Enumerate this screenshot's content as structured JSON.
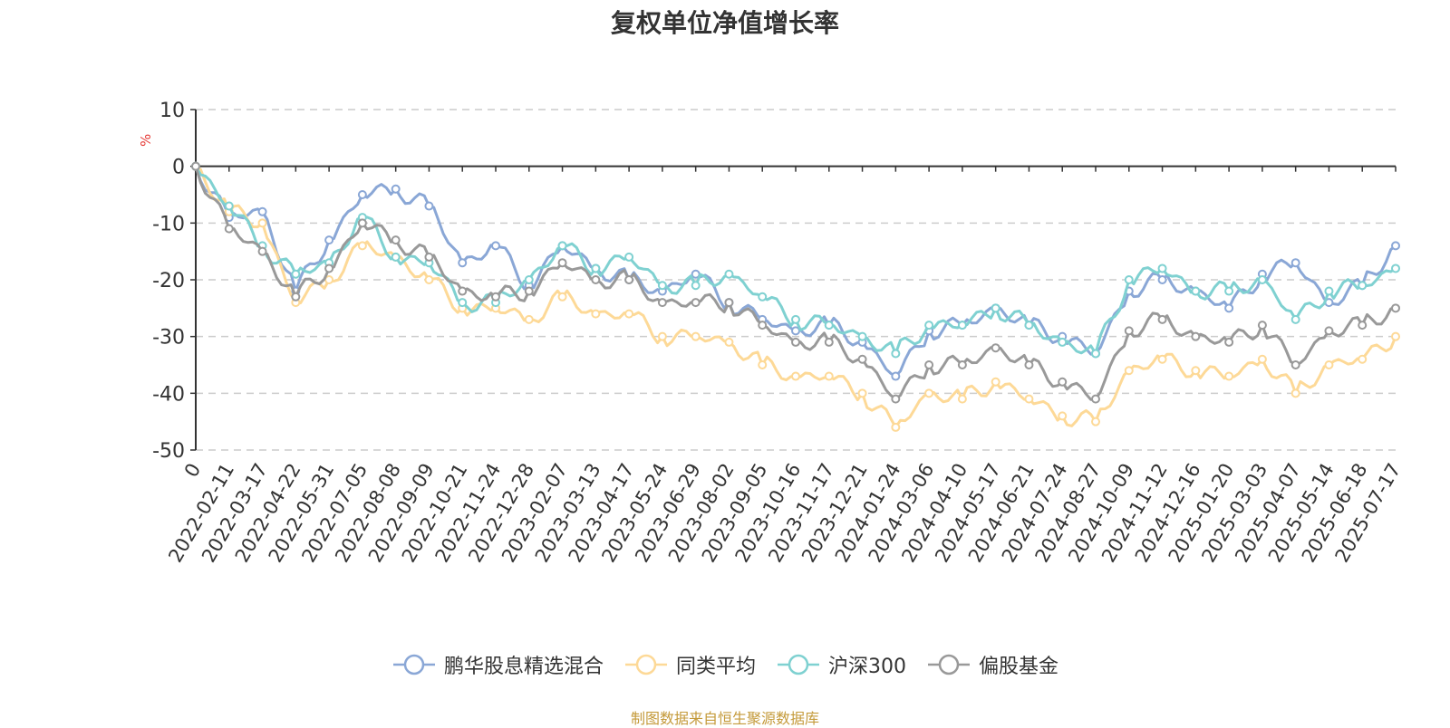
{
  "chart_data": {
    "type": "line",
    "title": "复权单位净值增长率",
    "ylabel": "%",
    "xlabel": "",
    "ylim": [
      -50,
      10
    ],
    "yticks": [
      10,
      0,
      -10,
      -20,
      -30,
      -40,
      -50
    ],
    "grid": true,
    "legend_position": "bottom-center",
    "x": [
      "0",
      "2022-02-11",
      "2022-03-17",
      "2022-04-22",
      "2022-05-31",
      "2022-07-05",
      "2022-08-08",
      "2022-09-09",
      "2022-10-21",
      "2022-11-24",
      "2022-12-28",
      "2023-02-07",
      "2023-03-13",
      "2023-04-17",
      "2023-05-24",
      "2023-06-29",
      "2023-08-02",
      "2023-09-05",
      "2023-10-16",
      "2023-11-17",
      "2023-12-21",
      "2024-01-24",
      "2024-03-06",
      "2024-04-10",
      "2024-05-17",
      "2024-06-21",
      "2024-07-24",
      "2024-08-27",
      "2024-10-09",
      "2024-11-12",
      "2024-12-16",
      "2025-01-20",
      "2025-03-03",
      "2025-04-07",
      "2025-05-14",
      "2025-06-18",
      "2025-07-17"
    ],
    "series": [
      {
        "name": "鹏华股息精选混合",
        "color": "#8aa7d6",
        "values": [
          0,
          -9,
          -8,
          -22,
          -13,
          -5,
          -4,
          -7,
          -17,
          -14,
          -21,
          -14,
          -18,
          -20,
          -22,
          -19,
          -24,
          -27,
          -29,
          -28,
          -31,
          -37,
          -29,
          -28,
          -25,
          -28,
          -30,
          -33,
          -22,
          -20,
          -22,
          -25,
          -19,
          -17,
          -24,
          -21,
          -14
        ]
      },
      {
        "name": "同类平均",
        "color": "#fdd997",
        "values": [
          0,
          -8,
          -10,
          -24,
          -20,
          -14,
          -16,
          -20,
          -25,
          -25,
          -27,
          -23,
          -26,
          -26,
          -30,
          -30,
          -31,
          -35,
          -37,
          -37,
          -40,
          -46,
          -40,
          -41,
          -38,
          -41,
          -44,
          -45,
          -36,
          -34,
          -36,
          -37,
          -34,
          -40,
          -35,
          -34,
          -30
        ]
      },
      {
        "name": "沪深300",
        "color": "#7fd1d1",
        "values": [
          0,
          -7,
          -14,
          -19,
          -17,
          -9,
          -16,
          -17,
          -24,
          -24,
          -20,
          -14,
          -18,
          -16,
          -21,
          -21,
          -19,
          -23,
          -27,
          -28,
          -30,
          -33,
          -28,
          -28,
          -25,
          -28,
          -31,
          -33,
          -20,
          -18,
          -22,
          -22,
          -20,
          -27,
          -22,
          -21,
          -18
        ]
      },
      {
        "name": "偏股基金",
        "color": "#999999",
        "values": [
          0,
          -11,
          -15,
          -23,
          -18,
          -10,
          -13,
          -16,
          -22,
          -23,
          -22,
          -17,
          -20,
          -20,
          -24,
          -24,
          -24,
          -28,
          -31,
          -31,
          -34,
          -41,
          -35,
          -35,
          -32,
          -35,
          -38,
          -41,
          -29,
          -27,
          -30,
          -31,
          -28,
          -35,
          -29,
          -28,
          -25
        ]
      }
    ]
  },
  "source_note": "制图数据来自恒生聚源数据库"
}
